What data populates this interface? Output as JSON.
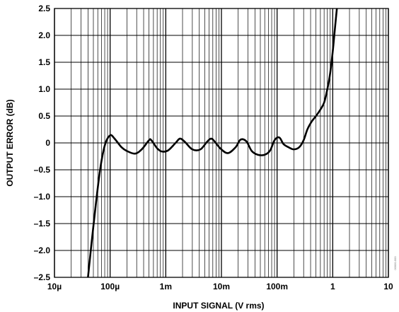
{
  "chart_data": {
    "type": "line",
    "xlabel": "INPUT SIGNAL (V rms)",
    "ylabel": "OUTPUT ERROR (dB)",
    "x_scale": "log",
    "xlim": [
      1e-05,
      10
    ],
    "ylim": [
      -2.5,
      2.5
    ],
    "grid": true,
    "x_tick_values": [
      1e-05,
      0.0001,
      0.001,
      0.01,
      0.1,
      1,
      10
    ],
    "x_tick_labels": [
      "10µ",
      "100µ",
      "1m",
      "10m",
      "100m",
      "1",
      "10"
    ],
    "y_tick_values": [
      2.5,
      2.0,
      1.5,
      1.0,
      0.5,
      0,
      -0.5,
      -1.0,
      -1.5,
      -2.0,
      -2.5
    ],
    "y_tick_labels": [
      "2.5",
      "2.0",
      "1.5",
      "1.0",
      "0.5",
      "0",
      "–0.5",
      "–1.0",
      "–1.5",
      "–2.0",
      "–2.5"
    ],
    "side_note": "00000-000",
    "line_color": "#000000",
    "series": [
      {
        "x": [
          4e-05,
          5e-05,
          6.5e-05,
          8e-05,
          0.0001,
          0.00012,
          0.00016,
          0.0002,
          0.00028,
          0.00037,
          0.0005,
          0.00055,
          0.0007,
          0.00085,
          0.0011,
          0.0015,
          0.0018,
          0.0022,
          0.003,
          0.0042,
          0.0055,
          0.0065,
          0.0075,
          0.0095,
          0.013,
          0.018,
          0.022,
          0.028,
          0.035,
          0.045,
          0.06,
          0.075,
          0.09,
          0.11,
          0.13,
          0.16,
          0.2,
          0.25,
          0.3,
          0.35,
          0.42,
          0.5,
          0.6,
          0.7,
          0.8,
          0.9,
          1.0,
          1.1,
          1.2
        ],
        "y": [
          -2.5,
          -1.55,
          -0.55,
          -0.05,
          0.14,
          0.08,
          -0.08,
          -0.15,
          -0.2,
          -0.12,
          0.05,
          0.05,
          -0.1,
          -0.16,
          -0.14,
          0.0,
          0.08,
          0.02,
          -0.12,
          -0.12,
          0.02,
          0.08,
          0.03,
          -0.1,
          -0.19,
          -0.08,
          0.06,
          0.03,
          -0.15,
          -0.22,
          -0.22,
          -0.14,
          0.05,
          0.1,
          -0.02,
          -0.08,
          -0.12,
          -0.08,
          0.05,
          0.25,
          0.4,
          0.5,
          0.62,
          0.75,
          1.0,
          1.3,
          1.7,
          2.15,
          2.55
        ]
      }
    ]
  }
}
